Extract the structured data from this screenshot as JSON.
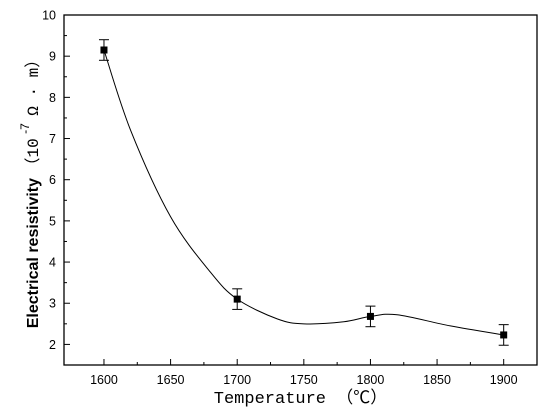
{
  "chart_data": {
    "type": "scatter",
    "title": "",
    "xlabel": "Temperature （℃）",
    "ylabel": {
      "text": "Electrical resistivity",
      "unit_open": "（10",
      "unit_exponent": "-7",
      "unit_close": "Ω · m）"
    },
    "xlim": [
      1570,
      1925
    ],
    "ylim": [
      1.5,
      10
    ],
    "x_ticks": [
      "1600",
      "1650",
      "1700",
      "1750",
      "1800",
      "1850",
      "1900"
    ],
    "y_ticks": [
      "2",
      "3",
      "4",
      "5",
      "6",
      "7",
      "8",
      "9",
      "10"
    ],
    "series": [
      {
        "x": [
          1600,
          1700,
          1800,
          1900
        ],
        "values": [
          9.15,
          3.1,
          2.68,
          2.23
        ],
        "error": [
          0.25,
          0.25,
          0.25,
          0.25
        ]
      }
    ],
    "curve": {
      "x": [
        1600,
        1620,
        1650,
        1680,
        1700,
        1730,
        1750,
        1780,
        1800,
        1820,
        1860,
        1900
      ],
      "y": [
        9.15,
        7.2,
        5.1,
        3.75,
        3.1,
        2.62,
        2.5,
        2.55,
        2.68,
        2.72,
        2.45,
        2.23
      ]
    },
    "grid": false,
    "legend": "none"
  }
}
